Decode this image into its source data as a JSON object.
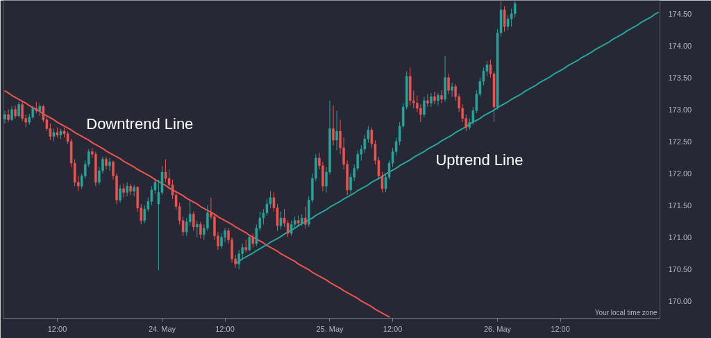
{
  "chart_data": {
    "type": "candlestick",
    "categories": [
      null,
      null,
      null,
      null,
      null,
      null,
      null,
      null,
      null,
      null,
      null,
      null,
      null,
      null,
      null,
      "12:00",
      null,
      null,
      null,
      null,
      null,
      null,
      null,
      null,
      null,
      null,
      null,
      null,
      null,
      null,
      null,
      null,
      null,
      null,
      null,
      null,
      null,
      null,
      null,
      null,
      null,
      null,
      null,
      null,
      null,
      "24. May",
      null,
      null,
      null,
      null,
      null,
      null,
      null,
      null,
      null,
      null,
      null,
      null,
      null,
      null,
      null,
      null,
      null,
      "12:00",
      null,
      null,
      null,
      null,
      null,
      null,
      null,
      null,
      null,
      null,
      null,
      null,
      null,
      null,
      null,
      null,
      null,
      null,
      null,
      null,
      null,
      null,
      null,
      null,
      null,
      null,
      null,
      null,
      null,
      "25. May",
      null,
      null,
      null,
      null,
      null,
      null,
      null,
      null,
      null,
      null,
      null,
      null,
      null,
      null,
      null,
      null,
      null,
      "12:00",
      null,
      null,
      null,
      null,
      null,
      null,
      null,
      null,
      null,
      null,
      null,
      null,
      null,
      null,
      null,
      null,
      null,
      null,
      null,
      null,
      null,
      null,
      null,
      null,
      null,
      null,
      null,
      null,
      null,
      "26. May",
      null,
      null,
      null,
      null,
      null,
      null,
      null,
      null,
      null,
      null,
      null,
      null,
      null,
      null,
      null,
      null,
      null,
      "12:00",
      null,
      null,
      null,
      null,
      null,
      null,
      null,
      null,
      null,
      null,
      null,
      null,
      null,
      null,
      null,
      null,
      null,
      null,
      null,
      null,
      null,
      null,
      null,
      null,
      null,
      null,
      null,
      null
    ],
    "ohlc": [
      [
        172.85,
        172.98,
        172.78,
        172.92
      ],
      [
        172.92,
        173.0,
        172.8,
        172.84
      ],
      [
        172.84,
        173.05,
        172.82,
        173.0
      ],
      [
        173.0,
        173.06,
        172.86,
        172.9
      ],
      [
        172.9,
        173.12,
        172.88,
        173.08
      ],
      [
        173.08,
        173.12,
        172.82,
        172.86
      ],
      [
        172.86,
        172.92,
        172.72,
        172.8
      ],
      [
        172.8,
        172.93,
        172.76,
        172.88
      ],
      [
        172.88,
        173.06,
        172.85,
        173.02
      ],
      [
        173.02,
        173.12,
        172.94,
        172.98
      ],
      [
        172.98,
        173.1,
        172.9,
        173.05
      ],
      [
        173.05,
        173.07,
        172.8,
        172.84
      ],
      [
        172.84,
        172.88,
        172.66,
        172.7
      ],
      [
        172.7,
        172.78,
        172.52,
        172.58
      ],
      [
        172.58,
        172.7,
        172.5,
        172.64
      ],
      [
        172.64,
        172.72,
        172.56,
        172.6
      ],
      [
        172.6,
        172.7,
        172.54,
        172.66
      ],
      [
        172.66,
        172.72,
        172.56,
        172.62
      ],
      [
        172.62,
        172.66,
        172.46,
        172.5
      ],
      [
        172.5,
        172.54,
        172.1,
        172.16
      ],
      [
        172.16,
        172.22,
        171.8,
        171.86
      ],
      [
        171.86,
        171.96,
        171.72,
        171.8
      ],
      [
        171.8,
        172.0,
        171.76,
        171.96
      ],
      [
        171.96,
        172.2,
        171.92,
        172.14
      ],
      [
        172.14,
        172.38,
        172.1,
        172.34
      ],
      [
        172.34,
        172.4,
        172.24,
        172.3
      ],
      [
        172.3,
        172.34,
        171.8,
        171.86
      ],
      [
        171.86,
        172.1,
        171.82,
        172.04
      ],
      [
        172.04,
        172.26,
        172.0,
        172.22
      ],
      [
        172.22,
        172.26,
        172.06,
        172.12
      ],
      [
        172.12,
        172.24,
        172.04,
        172.18
      ],
      [
        172.18,
        172.2,
        171.9,
        171.96
      ],
      [
        171.96,
        172.0,
        171.52,
        171.58
      ],
      [
        171.58,
        171.82,
        171.54,
        171.76
      ],
      [
        171.76,
        171.84,
        171.62,
        171.7
      ],
      [
        171.7,
        171.86,
        171.64,
        171.8
      ],
      [
        171.8,
        171.84,
        171.66,
        171.72
      ],
      [
        171.72,
        171.82,
        171.64,
        171.78
      ],
      [
        171.78,
        171.8,
        171.4,
        171.46
      ],
      [
        171.46,
        171.52,
        171.2,
        171.26
      ],
      [
        171.26,
        171.5,
        171.22,
        171.44
      ],
      [
        171.44,
        171.62,
        171.4,
        171.56
      ],
      [
        171.56,
        171.8,
        171.5,
        171.74
      ],
      [
        171.74,
        171.92,
        171.68,
        171.86
      ],
      [
        171.52,
        171.9,
        170.48,
        171.7
      ],
      [
        171.7,
        172.12,
        171.66,
        172.02
      ],
      [
        172.02,
        172.22,
        171.86,
        171.92
      ],
      [
        171.92,
        172.06,
        171.76,
        171.82
      ],
      [
        171.82,
        171.9,
        171.6,
        171.66
      ],
      [
        171.66,
        171.72,
        171.42,
        171.48
      ],
      [
        171.48,
        171.54,
        171.2,
        171.26
      ],
      [
        171.26,
        171.32,
        171.02,
        171.08
      ],
      [
        171.08,
        171.3,
        171.02,
        171.24
      ],
      [
        171.24,
        171.58,
        171.18,
        171.36
      ],
      [
        171.36,
        171.4,
        171.1,
        171.16
      ],
      [
        171.16,
        171.26,
        171.0,
        171.2
      ],
      [
        171.2,
        171.24,
        170.98,
        171.04
      ],
      [
        171.04,
        171.2,
        170.96,
        171.14
      ],
      [
        171.14,
        171.5,
        171.1,
        171.38
      ],
      [
        171.38,
        171.62,
        171.28,
        171.32
      ],
      [
        171.32,
        171.36,
        170.96,
        171.02
      ],
      [
        171.02,
        171.08,
        170.8,
        170.86
      ],
      [
        170.86,
        171.06,
        170.82,
        171.0
      ],
      [
        171.0,
        171.14,
        170.92,
        171.1
      ],
      [
        171.1,
        171.14,
        170.9,
        170.96
      ],
      [
        170.96,
        171.0,
        170.6,
        170.66
      ],
      [
        170.66,
        170.72,
        170.52,
        170.58
      ],
      [
        170.58,
        170.8,
        170.5,
        170.74
      ],
      [
        170.74,
        170.9,
        170.66,
        170.84
      ],
      [
        170.84,
        170.96,
        170.76,
        170.8
      ],
      [
        170.8,
        171.04,
        170.78,
        171.0
      ],
      [
        171.0,
        171.06,
        170.84,
        170.9
      ],
      [
        170.9,
        171.2,
        170.86,
        171.14
      ],
      [
        171.14,
        171.4,
        171.1,
        171.3
      ],
      [
        171.3,
        171.44,
        171.2,
        171.38
      ],
      [
        171.38,
        171.6,
        171.34,
        171.52
      ],
      [
        171.52,
        171.72,
        171.46,
        171.62
      ],
      [
        171.62,
        171.7,
        171.4,
        171.46
      ],
      [
        171.46,
        171.52,
        171.1,
        171.18
      ],
      [
        171.18,
        171.4,
        171.12,
        171.3
      ],
      [
        171.3,
        171.44,
        171.16,
        171.22
      ],
      [
        171.22,
        171.26,
        171.0,
        171.06
      ],
      [
        171.06,
        171.26,
        171.02,
        171.2
      ],
      [
        171.2,
        171.32,
        171.14,
        171.26
      ],
      [
        171.26,
        171.34,
        171.16,
        171.22
      ],
      [
        171.22,
        171.36,
        171.18,
        171.3
      ],
      [
        171.3,
        171.48,
        171.14,
        171.2
      ],
      [
        171.2,
        171.64,
        171.16,
        171.58
      ],
      [
        171.58,
        172.0,
        171.54,
        171.92
      ],
      [
        171.92,
        172.3,
        171.88,
        172.24
      ],
      [
        172.24,
        172.32,
        172.06,
        172.12
      ],
      [
        172.12,
        172.18,
        171.72,
        171.8
      ],
      [
        171.8,
        172.1,
        171.7,
        172.02
      ],
      [
        172.02,
        173.14,
        171.98,
        172.7
      ],
      [
        172.7,
        173.06,
        172.44,
        172.52
      ],
      [
        172.52,
        172.98,
        172.36,
        172.66
      ],
      [
        172.66,
        172.84,
        172.3,
        172.4
      ],
      [
        172.4,
        172.56,
        172.06,
        172.14
      ],
      [
        172.14,
        172.2,
        171.66,
        171.74
      ],
      [
        171.74,
        172.0,
        171.68,
        171.94
      ],
      [
        171.94,
        172.14,
        171.88,
        172.08
      ],
      [
        172.08,
        172.36,
        172.04,
        172.3
      ],
      [
        172.3,
        172.44,
        172.2,
        172.38
      ],
      [
        172.38,
        172.6,
        172.32,
        172.54
      ],
      [
        172.54,
        172.74,
        172.48,
        172.68
      ],
      [
        172.68,
        172.72,
        172.4,
        172.46
      ],
      [
        172.46,
        172.52,
        172.14,
        172.2
      ],
      [
        172.2,
        172.26,
        171.9,
        171.96
      ],
      [
        171.96,
        172.02,
        171.7,
        171.76
      ],
      [
        171.76,
        172.0,
        171.7,
        171.94
      ],
      [
        171.94,
        172.2,
        171.9,
        172.16
      ],
      [
        172.16,
        172.4,
        172.1,
        172.34
      ],
      [
        172.34,
        172.56,
        172.28,
        172.5
      ],
      [
        172.5,
        172.8,
        172.44,
        172.74
      ],
      [
        172.74,
        173.1,
        172.7,
        173.04
      ],
      [
        173.04,
        173.6,
        173.0,
        173.52
      ],
      [
        173.52,
        173.66,
        173.06,
        173.14
      ],
      [
        173.14,
        173.3,
        173.02,
        173.1
      ],
      [
        173.1,
        173.22,
        172.96,
        173.02
      ],
      [
        173.02,
        173.08,
        172.8,
        172.92
      ],
      [
        172.92,
        173.2,
        172.88,
        173.14
      ],
      [
        173.14,
        173.24,
        173.04,
        173.1
      ],
      [
        173.1,
        173.26,
        173.04,
        173.2
      ],
      [
        173.2,
        173.28,
        173.08,
        173.14
      ],
      [
        173.14,
        173.26,
        173.06,
        173.22
      ],
      [
        173.22,
        173.3,
        173.1,
        173.16
      ],
      [
        173.16,
        173.84,
        173.12,
        173.5
      ],
      [
        173.5,
        173.56,
        173.24,
        173.3
      ],
      [
        173.3,
        173.42,
        173.2,
        173.36
      ],
      [
        173.36,
        173.4,
        173.14,
        173.2
      ],
      [
        173.2,
        173.24,
        172.96,
        173.02
      ],
      [
        173.02,
        173.08,
        172.8,
        172.86
      ],
      [
        172.86,
        172.92,
        172.66,
        172.72
      ],
      [
        172.72,
        172.86,
        172.68,
        172.8
      ],
      [
        172.8,
        173.04,
        172.76,
        172.98
      ],
      [
        172.98,
        173.3,
        172.94,
        173.24
      ],
      [
        173.24,
        173.5,
        173.2,
        173.44
      ],
      [
        173.44,
        173.66,
        173.38,
        173.6
      ],
      [
        173.6,
        173.76,
        173.52,
        173.7
      ],
      [
        173.7,
        173.78,
        173.5,
        173.56
      ],
      [
        173.56,
        173.6,
        172.8,
        173.04
      ],
      [
        173.04,
        174.26,
        173.0,
        174.2
      ],
      [
        174.2,
        174.7,
        174.14,
        174.56
      ],
      [
        174.56,
        174.62,
        174.22,
        174.3
      ],
      [
        174.3,
        174.48,
        174.24,
        174.42
      ],
      [
        174.42,
        174.58,
        174.3,
        174.5
      ],
      [
        174.5,
        174.7,
        174.44,
        174.66
      ],
      null,
      null,
      null,
      null,
      null,
      null,
      null,
      null,
      null,
      null,
      null,
      null,
      null,
      null,
      null,
      null,
      null,
      null,
      null,
      null,
      null,
      null,
      null,
      null,
      null,
      null,
      null,
      null,
      null,
      null,
      null,
      null,
      null,
      null,
      null,
      null,
      null,
      null,
      null,
      null,
      null
    ],
    "colors": [
      "#26a69a",
      "#ef5350",
      "#26a69a",
      "#ef5350",
      "#26a69a",
      "#ef5350",
      "#ef5350",
      "#26a69a",
      "#26a69a",
      "#ef5350",
      "#26a69a",
      "#ef5350",
      "#ef5350",
      "#ef5350",
      "#26a69a",
      "#ef5350",
      "#26a69a",
      "#ef5350",
      "#ef5350",
      "#ef5350",
      "#ef5350",
      "#ef5350",
      "#26a69a",
      "#26a69a",
      "#26a69a",
      "#ef5350",
      "#ef5350",
      "#26a69a",
      "#26a69a",
      "#ef5350",
      "#26a69a",
      "#ef5350",
      "#ef5350",
      "#26a69a",
      "#ef5350",
      "#26a69a",
      "#ef5350",
      "#26a69a",
      "#ef5350",
      "#ef5350",
      "#26a69a",
      "#26a69a",
      "#26a69a",
      "#26a69a",
      "#26a69a",
      "#26a69a",
      "#ef5350",
      "#ef5350",
      "#ef5350",
      "#ef5350",
      "#ef5350",
      "#ef5350",
      "#26a69a",
      "#26a69a",
      "#ef5350",
      "#26a69a",
      "#ef5350",
      "#26a69a",
      "#26a69a",
      "#ef5350",
      "#ef5350",
      "#ef5350",
      "#26a69a",
      "#26a69a",
      "#ef5350",
      "#ef5350",
      "#ef5350",
      "#26a69a",
      "#26a69a",
      "#ef5350",
      "#26a69a",
      "#ef5350",
      "#26a69a",
      "#26a69a",
      "#26a69a",
      "#26a69a",
      "#26a69a",
      "#ef5350",
      "#ef5350",
      "#26a69a",
      "#ef5350",
      "#ef5350",
      "#26a69a",
      "#26a69a",
      "#ef5350",
      "#26a69a",
      "#ef5350",
      "#26a69a",
      "#26a69a",
      "#26a69a",
      "#ef5350",
      "#ef5350",
      "#26a69a",
      "#26a69a",
      "#ef5350",
      "#26a69a",
      "#ef5350",
      "#ef5350",
      "#ef5350",
      "#26a69a",
      "#26a69a",
      "#26a69a",
      "#26a69a",
      "#26a69a",
      "#26a69a",
      "#ef5350",
      "#ef5350",
      "#ef5350",
      "#ef5350",
      "#26a69a",
      "#26a69a",
      "#26a69a",
      "#26a69a",
      "#26a69a",
      "#26a69a",
      "#26a69a",
      "#ef5350",
      "#ef5350",
      "#ef5350",
      "#ef5350",
      "#26a69a",
      "#ef5350",
      "#26a69a",
      "#ef5350",
      "#26a69a",
      "#ef5350",
      "#26a69a",
      "#ef5350",
      "#26a69a",
      "#ef5350",
      "#ef5350",
      "#ef5350",
      "#ef5350",
      "#26a69a",
      "#26a69a",
      "#26a69a",
      "#26a69a",
      "#26a69a",
      "#26a69a",
      "#ef5350",
      "#ef5350",
      "#26a69a",
      "#26a69a",
      "#ef5350",
      "#26a69a",
      "#26a69a",
      "#26a69a",
      null,
      null,
      null,
      null,
      null,
      null,
      null,
      null,
      null,
      null,
      null,
      null,
      null,
      null,
      null,
      null,
      null,
      null,
      null,
      null,
      null,
      null,
      null,
      null,
      null,
      null,
      null,
      null,
      null,
      null,
      null,
      null,
      null,
      null,
      null,
      null,
      null,
      null,
      null,
      null,
      null
    ],
    "series": [
      {
        "type": "line",
        "name": "Downtrend Line",
        "color": "#ef5350",
        "values": [
          173.29,
          173.26,
          173.22,
          173.19,
          173.16,
          173.13,
          173.1,
          173.06,
          173.03,
          173.0,
          172.97,
          172.93,
          172.9,
          172.87,
          172.84,
          172.8,
          172.77,
          172.74,
          172.71,
          172.68,
          172.64,
          172.61,
          172.58,
          172.55,
          172.52,
          172.48,
          172.45,
          172.42,
          172.39,
          172.35,
          172.32,
          172.29,
          172.26,
          172.23,
          172.19,
          172.16,
          172.13,
          172.1,
          172.06,
          172.03,
          172.0,
          171.97,
          171.94,
          171.9,
          171.87,
          171.84,
          171.81,
          171.77,
          171.74,
          171.71,
          171.68,
          171.65,
          171.61,
          171.58,
          171.55,
          171.52,
          171.48,
          171.45,
          171.42,
          171.39,
          171.36,
          171.32,
          171.29,
          171.26,
          171.23,
          171.2,
          171.16,
          171.13,
          171.1,
          171.07,
          171.03,
          171.0,
          170.97,
          170.94,
          170.91,
          170.87,
          170.84,
          170.81,
          170.78,
          170.74,
          170.71,
          170.68,
          170.65,
          170.62,
          170.58,
          170.55,
          170.52,
          170.49,
          170.45,
          170.42,
          170.39,
          170.36,
          170.33,
          170.29,
          170.26,
          170.23,
          170.2,
          170.16,
          170.13,
          170.1,
          170.07,
          170.04,
          170.0,
          169.97,
          169.94,
          169.91,
          169.87,
          169.84,
          169.81,
          169.78,
          169.75,
          null,
          null,
          null,
          null,
          null,
          null,
          null,
          null,
          null,
          null,
          null,
          null,
          null,
          null,
          null,
          null,
          null,
          null,
          null,
          null,
          null,
          null,
          null,
          null,
          null,
          null,
          null,
          null,
          null,
          null,
          null,
          null,
          null,
          null,
          null,
          null,
          null,
          null,
          null,
          null,
          null,
          null,
          null,
          null,
          null,
          null,
          null,
          null,
          null,
          null,
          null,
          null,
          null,
          null,
          null,
          null,
          null,
          null,
          null,
          null,
          null,
          null,
          null,
          null,
          null,
          null,
          null,
          null,
          null,
          null,
          null,
          null,
          null,
          null,
          null,
          null,
          null
        ]
      },
      {
        "type": "line",
        "name": "Uptrend Line",
        "color": "#26a69a",
        "values": [
          null,
          null,
          null,
          null,
          null,
          null,
          null,
          null,
          null,
          null,
          null,
          null,
          null,
          null,
          null,
          null,
          null,
          null,
          null,
          null,
          null,
          null,
          null,
          null,
          null,
          null,
          null,
          null,
          null,
          null,
          null,
          null,
          null,
          null,
          null,
          null,
          null,
          null,
          null,
          null,
          null,
          null,
          null,
          null,
          null,
          null,
          null,
          null,
          null,
          null,
          null,
          null,
          null,
          null,
          null,
          null,
          null,
          null,
          null,
          null,
          null,
          null,
          null,
          null,
          null,
          null,
          170.59,
          170.62,
          170.66,
          170.69,
          170.72,
          170.75,
          170.79,
          170.82,
          170.85,
          170.88,
          170.92,
          170.95,
          170.98,
          171.01,
          171.05,
          171.08,
          171.11,
          171.14,
          171.18,
          171.21,
          171.24,
          171.27,
          171.3,
          171.34,
          171.37,
          171.4,
          171.43,
          171.47,
          171.5,
          171.53,
          171.56,
          171.6,
          171.63,
          171.66,
          171.69,
          171.73,
          171.76,
          171.79,
          171.82,
          171.86,
          171.89,
          171.92,
          171.95,
          171.99,
          172.02,
          172.05,
          172.08,
          172.12,
          172.15,
          172.18,
          172.21,
          172.25,
          172.28,
          172.31,
          172.34,
          172.38,
          172.41,
          172.44,
          172.47,
          172.51,
          172.54,
          172.57,
          172.6,
          172.64,
          172.67,
          172.7,
          172.73,
          172.77,
          172.8,
          172.83,
          172.86,
          172.9,
          172.93,
          172.96,
          172.99,
          173.03,
          173.06,
          173.09,
          173.12,
          173.16,
          173.19,
          173.22,
          173.25,
          173.29,
          173.32,
          173.35,
          173.38,
          173.42,
          173.45,
          173.48,
          173.51,
          173.55,
          173.58,
          173.61,
          173.64,
          173.68,
          173.71,
          173.74,
          173.77,
          173.81,
          173.84,
          173.87,
          173.9,
          173.94,
          173.97,
          174.0,
          174.03,
          174.06,
          174.1,
          174.13,
          174.16,
          174.19,
          174.23,
          174.26,
          174.29,
          174.32,
          174.36,
          174.39,
          174.42,
          174.45,
          174.49,
          174.52
        ]
      }
    ],
    "ylim": [
      169.73,
      174.71
    ],
    "yticks": [
      {
        "value": 170,
        "label": "170.00"
      },
      {
        "value": 170.5,
        "label": "170.50"
      },
      {
        "value": 171,
        "label": "171.00"
      },
      {
        "value": 171.5,
        "label": "171.50"
      },
      {
        "value": 172,
        "label": "172.00"
      },
      {
        "value": 172.5,
        "label": "172.50"
      },
      {
        "value": 173,
        "label": "173.00"
      },
      {
        "value": 173.5,
        "label": "173.50"
      },
      {
        "value": 174,
        "label": "174.00"
      },
      {
        "value": 174.5,
        "label": "174.50"
      }
    ],
    "annotations": [
      "Your local time zone"
    ]
  }
}
